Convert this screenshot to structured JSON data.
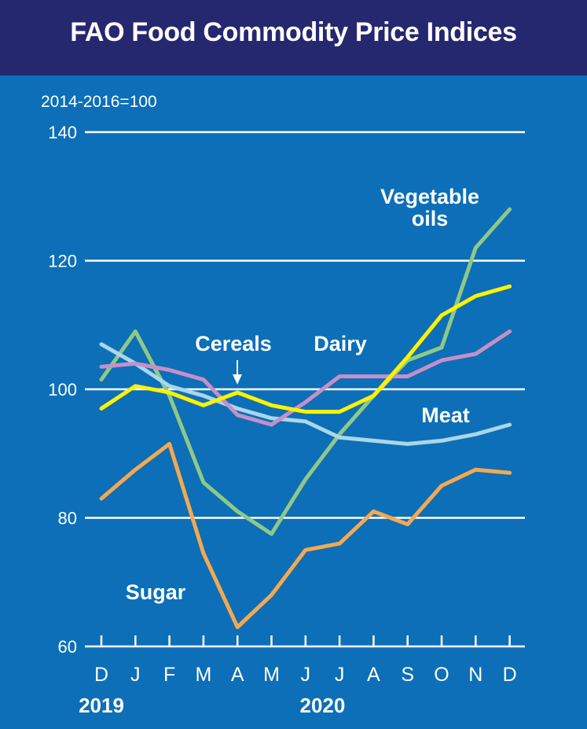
{
  "chart_data": {
    "type": "line",
    "title": "FAO Food Commodity Price Indices",
    "subtitle": "2014-2016=100",
    "xlabel": "",
    "ylabel": "",
    "ylim": [
      60,
      140
    ],
    "y_ticks": [
      "60",
      "80",
      "100",
      "120",
      "140"
    ],
    "categories": [
      "D",
      "J",
      "F",
      "M",
      "A",
      "M",
      "J",
      "J",
      "A",
      "S",
      "O",
      "N",
      "D"
    ],
    "year_labels": [
      {
        "label": "2019",
        "category_index": 0
      },
      {
        "label": "2020",
        "category_index": 6.5
      }
    ],
    "grid": true,
    "series": [
      {
        "name": "Sugar",
        "color": "#f4a950",
        "values": [
          83,
          87.5,
          91.5,
          74.5,
          63,
          68,
          75,
          76,
          81,
          79,
          85,
          87.5,
          87
        ]
      },
      {
        "name": "Cereals",
        "color": "#fff200",
        "values": [
          97,
          100.5,
          99.5,
          97.5,
          99.5,
          97.5,
          96.5,
          96.5,
          99,
          105,
          111.5,
          114.5,
          116
        ]
      },
      {
        "name": "Dairy",
        "color": "#c78fc7",
        "values": [
          103.5,
          104,
          103,
          101.5,
          96,
          94.5,
          98,
          102,
          102,
          102,
          104.5,
          105.5,
          109
        ]
      },
      {
        "name": "Meat",
        "color": "#a9d7e8",
        "values": [
          107,
          104,
          100.5,
          99,
          97,
          95.5,
          95,
          92.5,
          92,
          91.5,
          92,
          93,
          94.5
        ]
      },
      {
        "name": "Vegetable oils",
        "color": "#8fc888",
        "values": [
          101.5,
          109,
          99,
          85.5,
          81,
          77.5,
          86,
          93,
          99,
          104.5,
          106.5,
          122,
          128
        ]
      }
    ],
    "annotations": [
      {
        "series": "Sugar",
        "lines": [
          "Sugar"
        ]
      },
      {
        "series": "Cereals",
        "lines": [
          "Cereals"
        ]
      },
      {
        "series": "Dairy",
        "lines": [
          "Dairy"
        ]
      },
      {
        "series": "Meat",
        "lines": [
          "Meat"
        ]
      },
      {
        "series": "Vegetable oils",
        "lines": [
          "Vegetable",
          "oils"
        ]
      }
    ]
  }
}
